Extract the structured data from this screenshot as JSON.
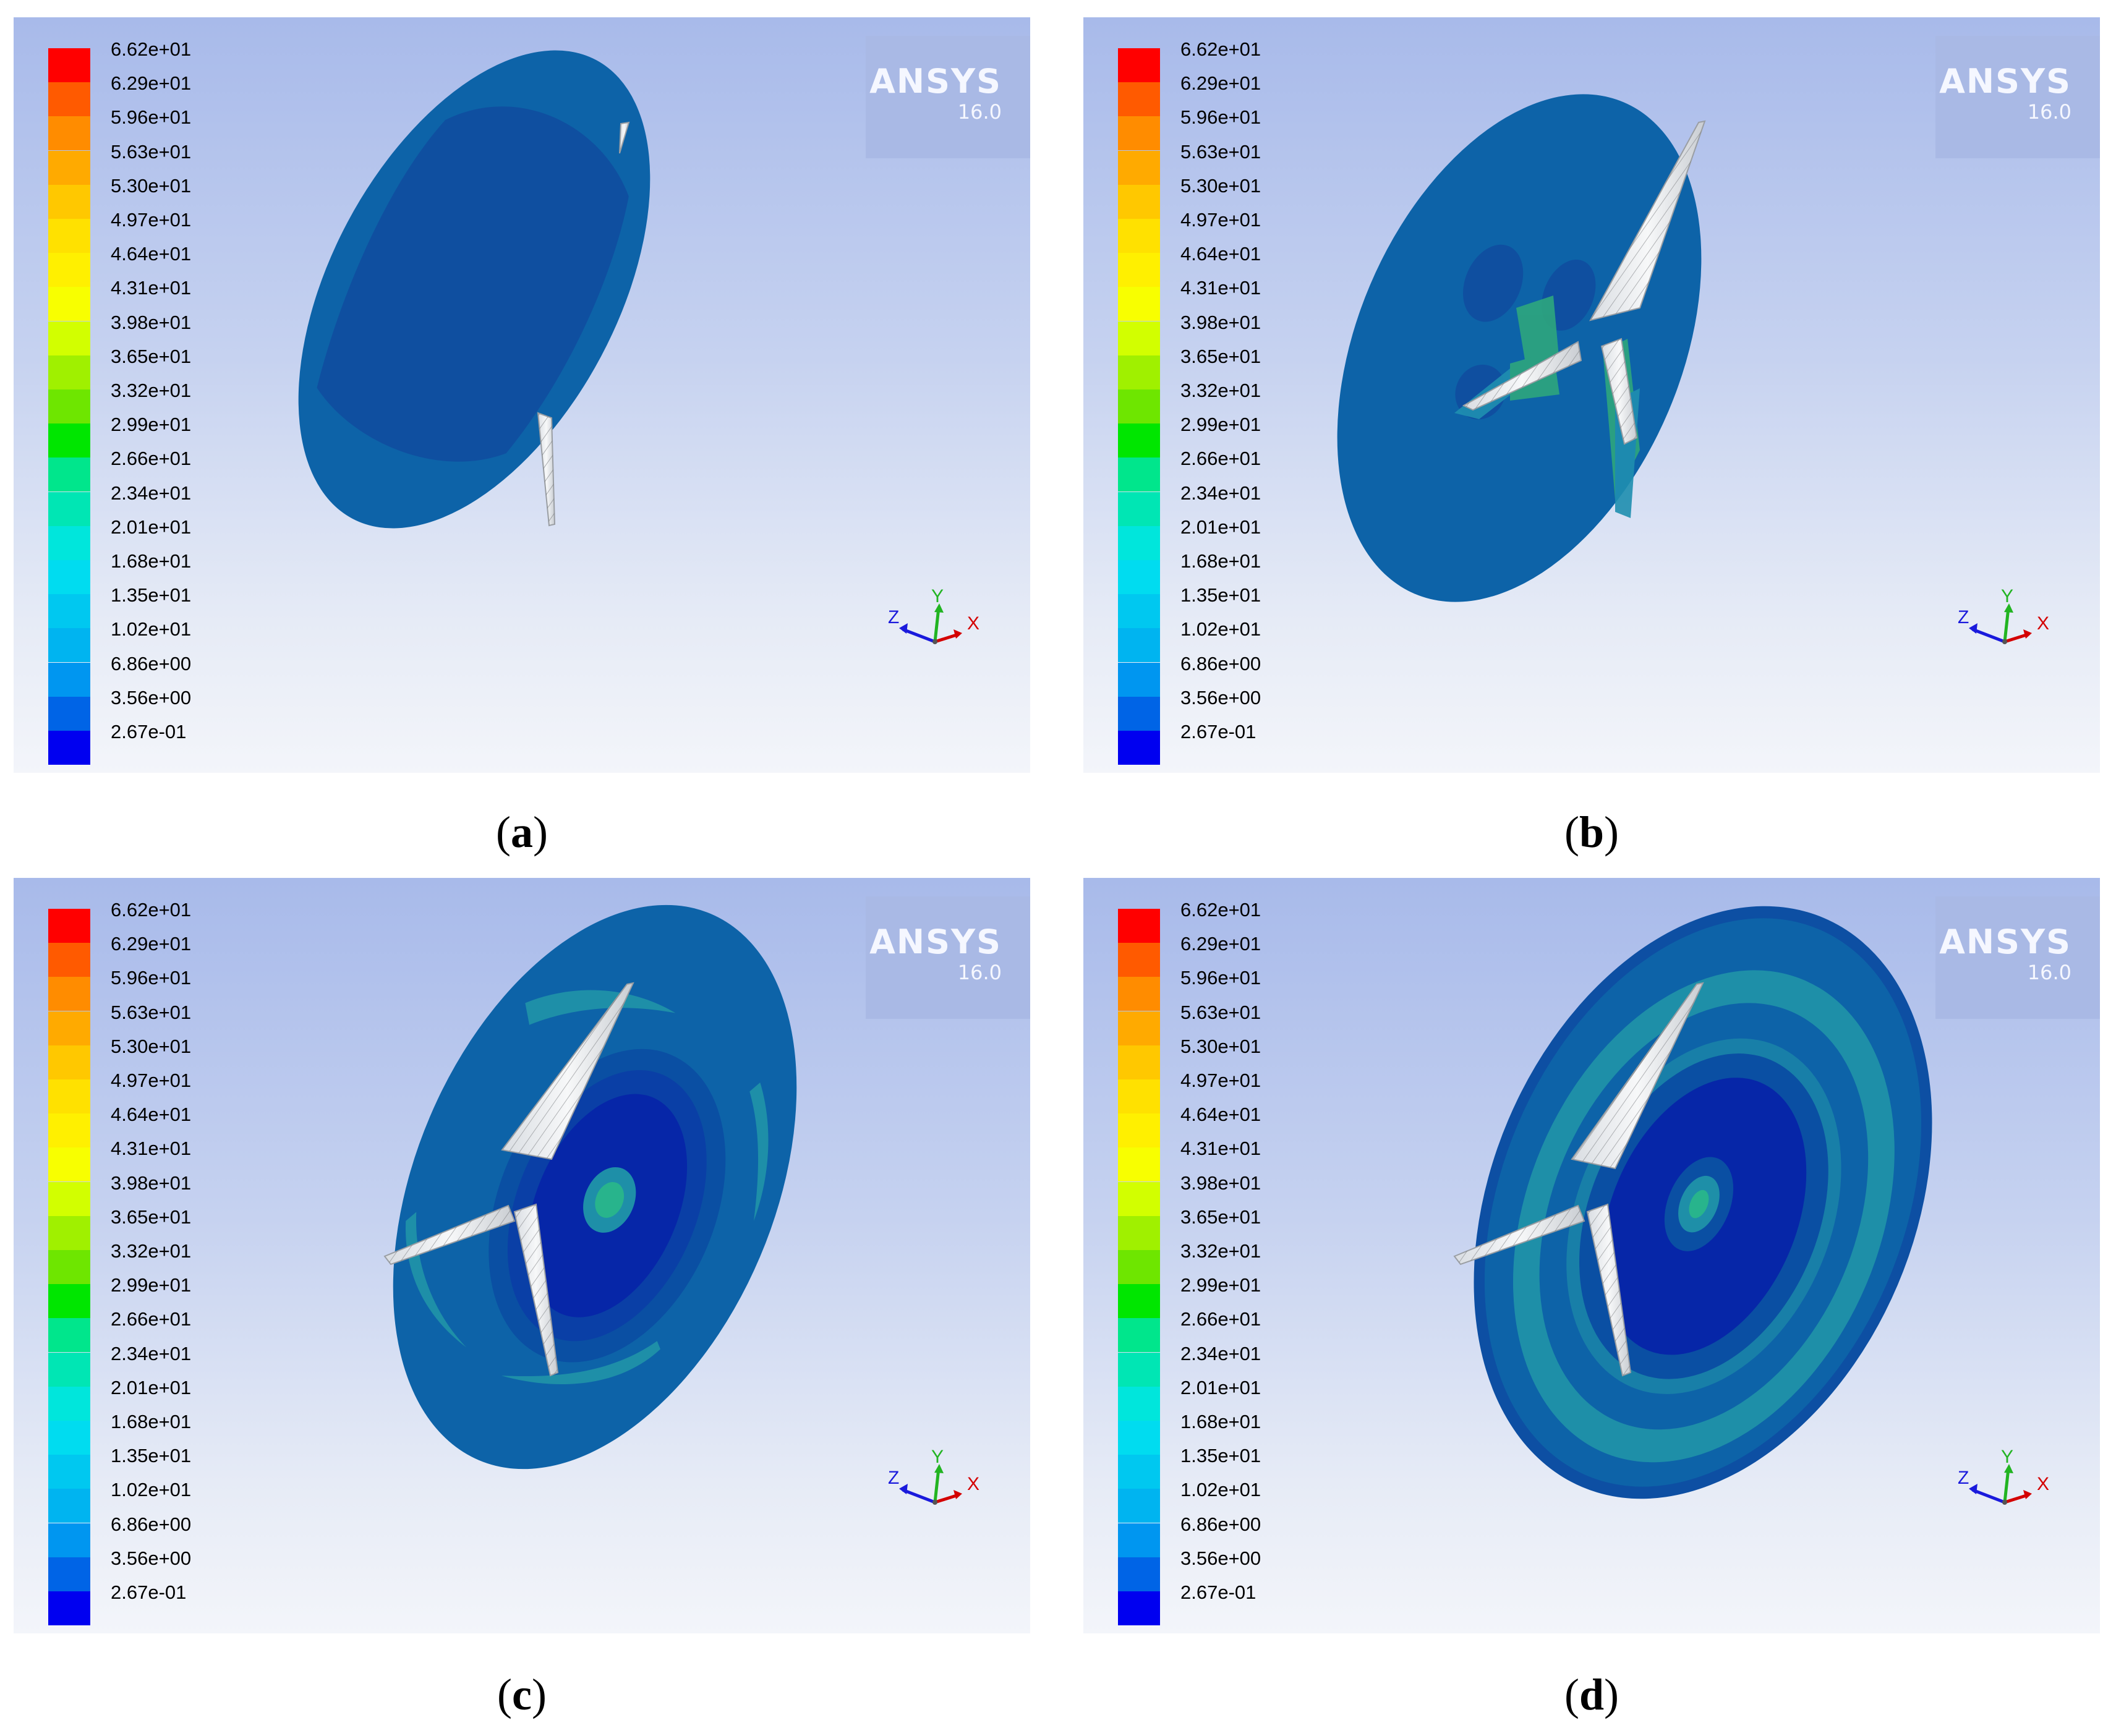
{
  "colorbar": {
    "labels": [
      "6.62e+01",
      "6.29e+01",
      "5.96e+01",
      "5.63e+01",
      "5.30e+01",
      "4.97e+01",
      "4.64e+01",
      "4.31e+01",
      "3.98e+01",
      "3.65e+01",
      "3.32e+01",
      "2.99e+01",
      "2.66e+01",
      "2.34e+01",
      "2.01e+01",
      "1.68e+01",
      "1.35e+01",
      "1.02e+01",
      "6.86e+00",
      "3.56e+00",
      "2.67e-01"
    ],
    "colors": [
      "#ff0000",
      "#ff5a00",
      "#ff8c00",
      "#ffaa00",
      "#ffc800",
      "#ffe100",
      "#fff000",
      "#f8ff00",
      "#d2ff00",
      "#a0f000",
      "#6ee600",
      "#00e600",
      "#00e68c",
      "#00e6b4",
      "#00e6dc",
      "#00dcf0",
      "#00c8f0",
      "#00b4f0",
      "#0096f0",
      "#0064e6",
      "#0000f0"
    ]
  },
  "logo": {
    "brand": "ANSYS",
    "version": "16.0"
  },
  "axes_triad": {
    "x": "X",
    "y": "Y",
    "z": "Z"
  },
  "panels": [
    {
      "open": "(",
      "letter": "a",
      "close": ")"
    },
    {
      "open": "(",
      "letter": "b",
      "close": ")"
    },
    {
      "open": "(",
      "letter": "c",
      "close": ")"
    },
    {
      "open": "(",
      "letter": "d",
      "close": ")"
    }
  ]
}
